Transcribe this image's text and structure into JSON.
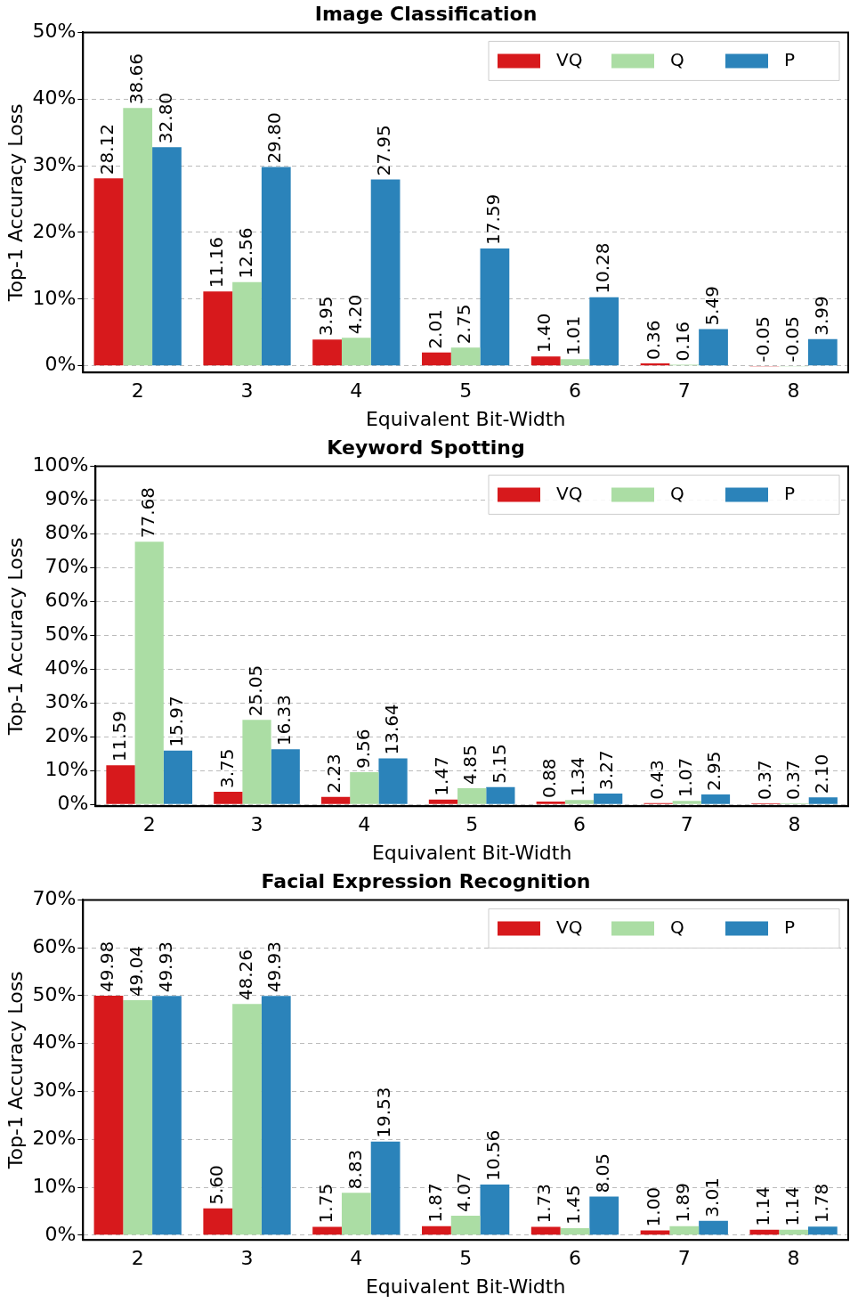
{
  "chart_data": [
    {
      "type": "bar",
      "title": "Image Classification",
      "xlabel": "Equivalent Bit-Width",
      "ylabel": "Top-1 Accuracy Loss",
      "categories": [
        "2",
        "3",
        "4",
        "5",
        "6",
        "7",
        "8"
      ],
      "series": [
        {
          "name": "VQ",
          "color": "#d7191c",
          "values": [
            28.12,
            11.16,
            3.95,
            2.01,
            1.4,
            0.36,
            -0.05
          ],
          "value_labels": [
            "28.12",
            "11.16",
            "3.95",
            "2.01",
            "1.40",
            "0.36",
            "-0.05"
          ]
        },
        {
          "name": "Q",
          "color": "#abdda4",
          "values": [
            38.66,
            12.56,
            4.2,
            2.75,
            1.01,
            0.16,
            -0.05
          ],
          "value_labels": [
            "38.66",
            "12.56",
            "4.20",
            "2.75",
            "1.01",
            "0.16",
            "-0.05"
          ]
        },
        {
          "name": "P",
          "color": "#2b83ba",
          "values": [
            32.8,
            29.8,
            27.95,
            17.59,
            10.28,
            5.49,
            3.99
          ],
          "value_labels": [
            "32.80",
            "29.80",
            "27.95",
            "17.59",
            "10.28",
            "5.49",
            "3.99"
          ]
        }
      ],
      "ylim": [
        -1,
        50
      ],
      "yticks": [
        {
          "value": 0,
          "label": "0%"
        },
        {
          "value": 10,
          "label": "10%"
        },
        {
          "value": 20,
          "label": "20%"
        },
        {
          "value": 30,
          "label": "30%"
        },
        {
          "value": 40,
          "label": "40%"
        },
        {
          "value": 50,
          "label": "50%"
        }
      ],
      "grid": "y",
      "legend": "top right"
    },
    {
      "type": "bar",
      "title": "Keyword Spotting",
      "xlabel": "Equivalent Bit-Width",
      "ylabel": "Top-1 Accuracy Loss",
      "categories": [
        "2",
        "3",
        "4",
        "5",
        "6",
        "7",
        "8"
      ],
      "series": [
        {
          "name": "VQ",
          "color": "#d7191c",
          "values": [
            11.59,
            3.75,
            2.23,
            1.47,
            0.88,
            0.43,
            0.37
          ],
          "value_labels": [
            "11.59",
            "3.75",
            "2.23",
            "1.47",
            "0.88",
            "0.43",
            "0.37"
          ]
        },
        {
          "name": "Q",
          "color": "#abdda4",
          "values": [
            77.68,
            25.05,
            9.56,
            4.85,
            1.34,
            1.07,
            0.37
          ],
          "value_labels": [
            "77.68",
            "25.05",
            "9.56",
            "4.85",
            "1.34",
            "1.07",
            "0.37"
          ]
        },
        {
          "name": "P",
          "color": "#2b83ba",
          "values": [
            15.97,
            16.33,
            13.64,
            5.15,
            3.27,
            2.95,
            2.1
          ],
          "value_labels": [
            "15.97",
            "16.33",
            "13.64",
            "5.15",
            "3.27",
            "2.95",
            "2.10"
          ]
        }
      ],
      "ylim": [
        -0.5,
        100
      ],
      "yticks": [
        {
          "value": 0,
          "label": "0%"
        },
        {
          "value": 10,
          "label": "10%"
        },
        {
          "value": 20,
          "label": "20%"
        },
        {
          "value": 30,
          "label": "30%"
        },
        {
          "value": 40,
          "label": "40%"
        },
        {
          "value": 50,
          "label": "50%"
        },
        {
          "value": 60,
          "label": "60%"
        },
        {
          "value": 70,
          "label": "70%"
        },
        {
          "value": 80,
          "label": "80%"
        },
        {
          "value": 90,
          "label": "90%"
        },
        {
          "value": 100,
          "label": "100%"
        }
      ],
      "grid": "y",
      "legend": "top right"
    },
    {
      "type": "bar",
      "title": "Facial Expression Recognition",
      "xlabel": "Equivalent Bit-Width",
      "ylabel": "Top-1 Accuracy Loss",
      "categories": [
        "2",
        "3",
        "4",
        "5",
        "6",
        "7",
        "8"
      ],
      "series": [
        {
          "name": "VQ",
          "color": "#d7191c",
          "values": [
            49.98,
            5.6,
            1.75,
            1.87,
            1.73,
            1.0,
            1.14
          ],
          "value_labels": [
            "49.98",
            "5.60",
            "1.75",
            "1.87",
            "1.73",
            "1.00",
            "1.14"
          ]
        },
        {
          "name": "Q",
          "color": "#abdda4",
          "values": [
            49.04,
            48.26,
            8.83,
            4.07,
            1.45,
            1.89,
            1.14
          ],
          "value_labels": [
            "49.04",
            "48.26",
            "8.83",
            "4.07",
            "1.45",
            "1.89",
            "1.14"
          ]
        },
        {
          "name": "P",
          "color": "#2b83ba",
          "values": [
            49.93,
            49.93,
            19.53,
            10.56,
            8.05,
            3.01,
            1.78
          ],
          "value_labels": [
            "49.93",
            "49.93",
            "19.53",
            "10.56",
            "8.05",
            "3.01",
            "1.78"
          ]
        }
      ],
      "ylim": [
        -1,
        70
      ],
      "yticks": [
        {
          "value": 0,
          "label": "0%"
        },
        {
          "value": 10,
          "label": "10%"
        },
        {
          "value": 20,
          "label": "20%"
        },
        {
          "value": 30,
          "label": "30%"
        },
        {
          "value": 40,
          "label": "40%"
        },
        {
          "value": 50,
          "label": "50%"
        },
        {
          "value": 60,
          "label": "60%"
        },
        {
          "value": 70,
          "label": "70%"
        }
      ],
      "grid": "y",
      "legend": "top right"
    }
  ]
}
